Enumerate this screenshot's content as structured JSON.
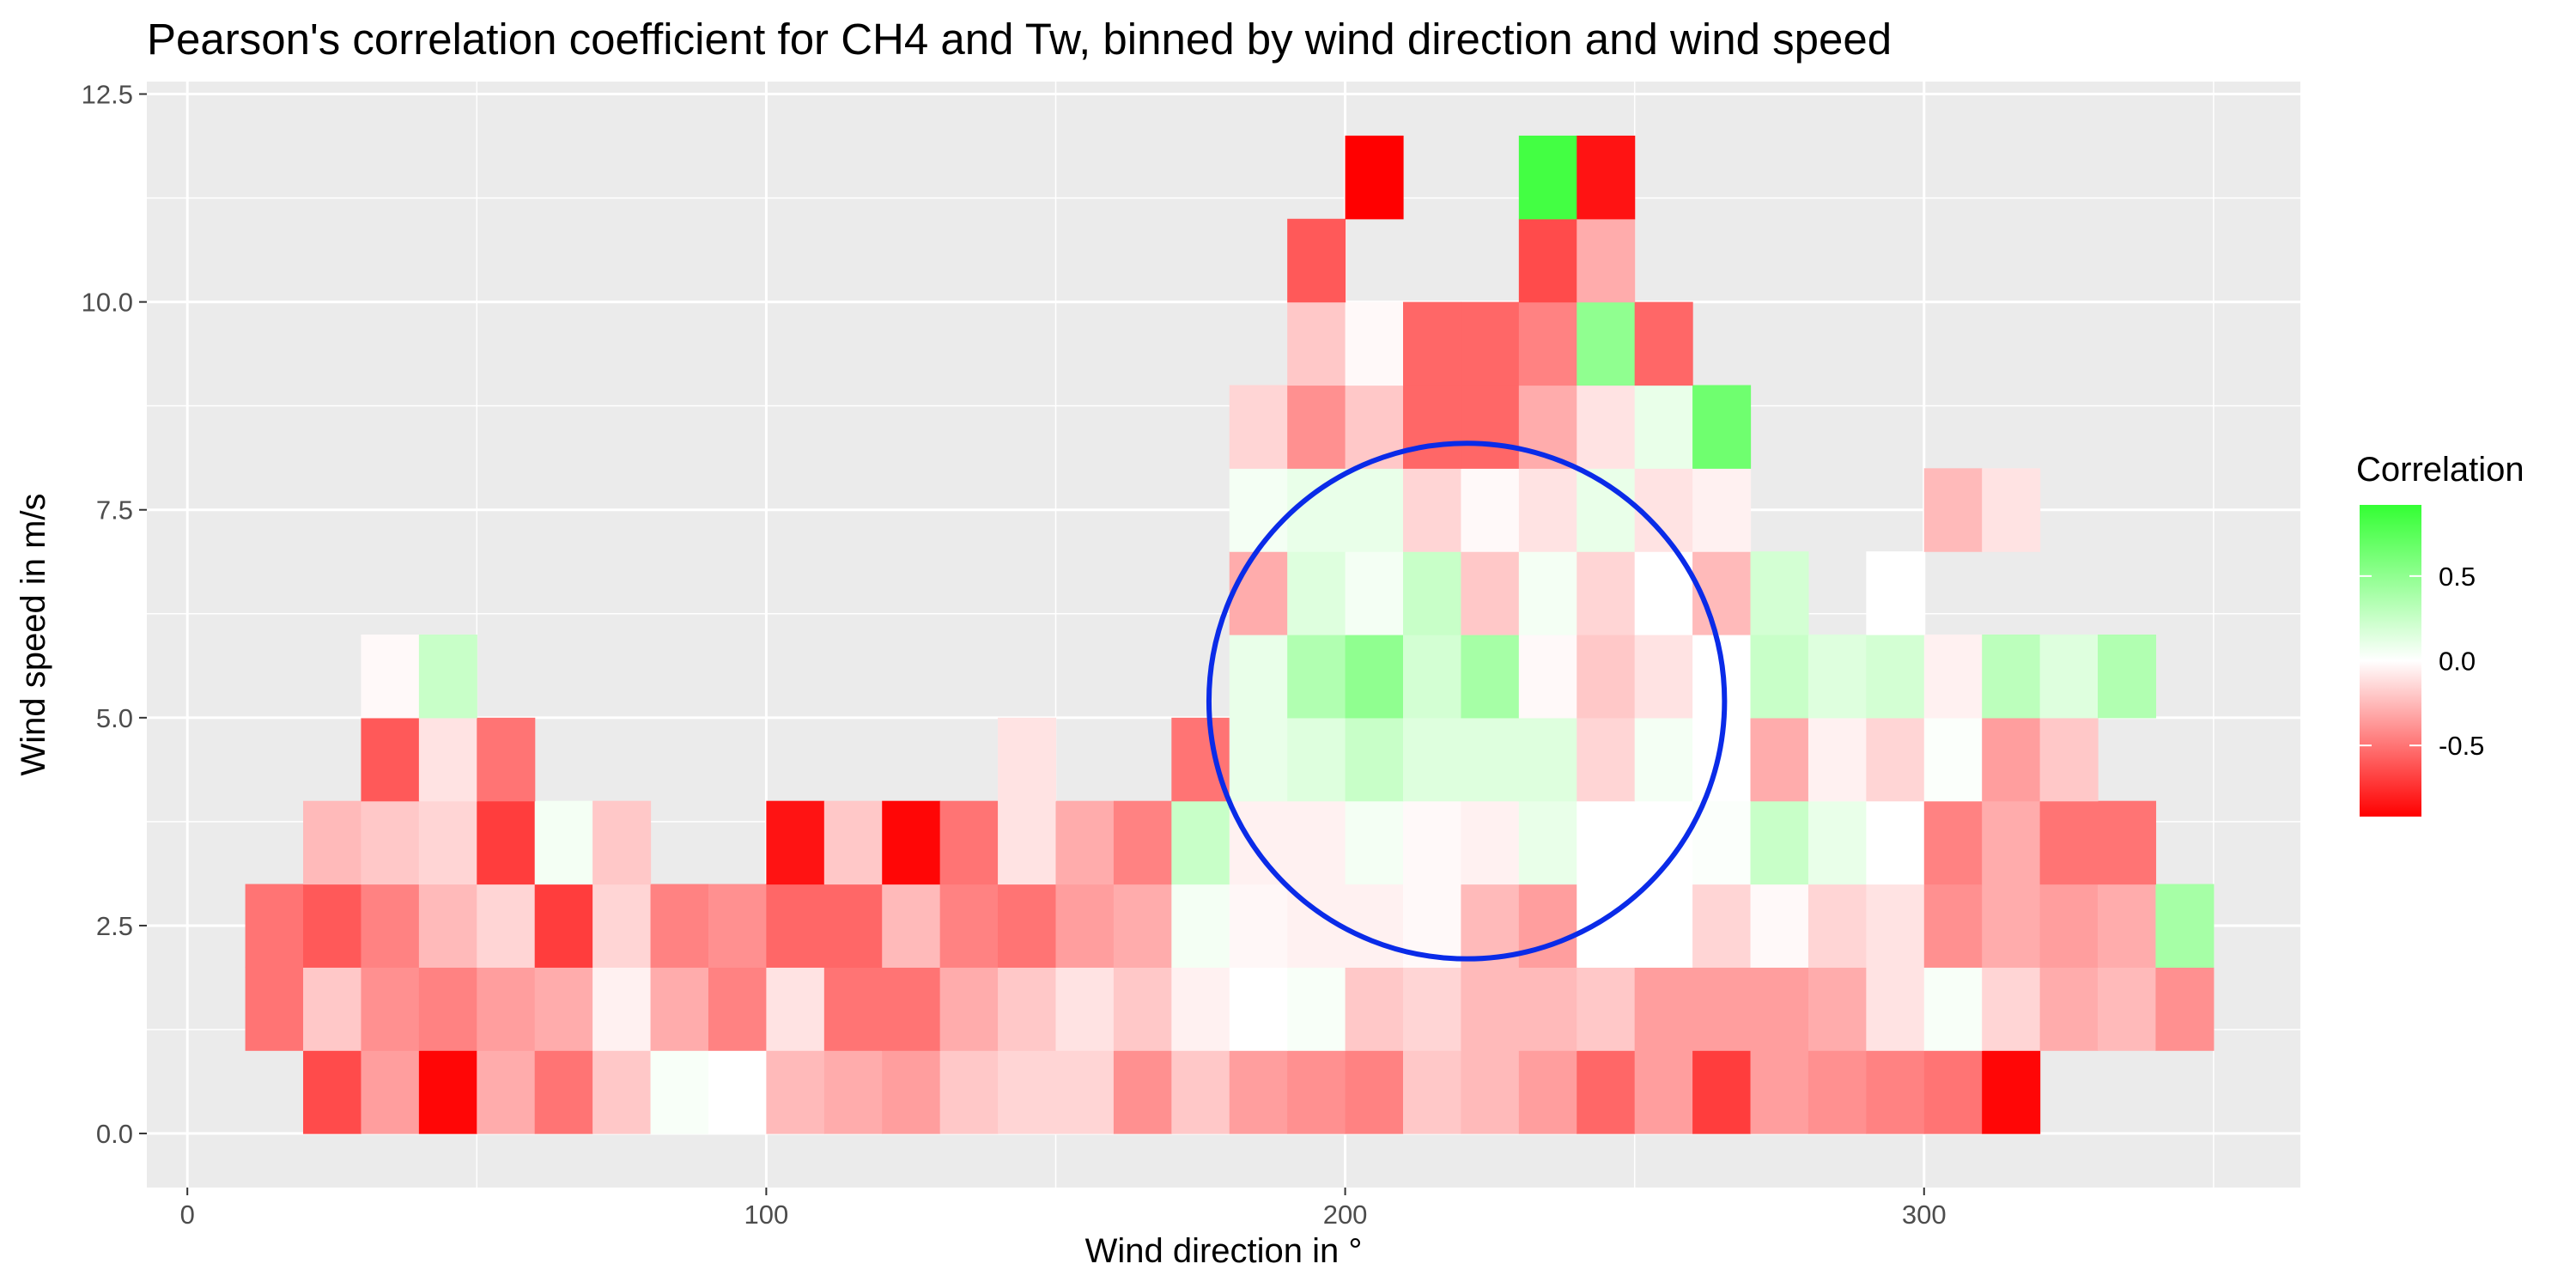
{
  "chart_data": {
    "type": "heatmap",
    "title": "Pearson's correlation coefficient for CH4 and Tw, binned by wind direction and wind speed",
    "xlabel": "Wind direction in °",
    "ylabel": "Wind speed in m/s",
    "xlim": [
      -7,
      365
    ],
    "ylim": [
      -0.65,
      12.65
    ],
    "x_ticks": [
      0,
      100,
      200,
      300
    ],
    "x_tick_labels": [
      "0",
      "100",
      "200",
      "300"
    ],
    "y_ticks": [
      0,
      2.5,
      5,
      7.5,
      10,
      12.5
    ],
    "y_tick_labels": [
      "0.0",
      "2.5",
      "5.0",
      "7.5",
      "10.0",
      "12.5"
    ],
    "grid": true,
    "bin_width_deg": 10,
    "bin_height_ms": 1,
    "rows": [
      {
        "y": 0,
        "x_start": 20,
        "values": [
          -0.65,
          -0.35,
          -0.9,
          -0.3,
          -0.5,
          -0.2,
          0.03,
          0.0,
          -0.25,
          -0.3,
          -0.35,
          -0.2,
          -0.15,
          -0.15,
          -0.4,
          -0.2,
          -0.35,
          -0.4,
          -0.45,
          -0.2,
          -0.25,
          -0.35,
          -0.55,
          -0.35,
          -0.7,
          -0.35,
          -0.4,
          -0.45,
          -0.5,
          -0.9
        ]
      },
      {
        "y": 1,
        "x_start": 10,
        "values": [
          -0.5,
          -0.2,
          -0.4,
          -0.45,
          -0.35,
          -0.3,
          -0.05,
          -0.3,
          -0.45,
          -0.1,
          -0.5,
          -0.5,
          -0.3,
          -0.2,
          -0.1,
          -0.2,
          -0.05,
          0.0,
          0.03,
          -0.2,
          -0.15,
          -0.25,
          -0.25,
          -0.2,
          -0.35,
          -0.35,
          -0.35,
          -0.3,
          -0.1,
          0.03,
          -0.15,
          -0.3,
          -0.25,
          -0.4
        ]
      },
      {
        "y": 2,
        "x_start": 10,
        "values": [
          -0.5,
          -0.6,
          -0.45,
          -0.25,
          -0.15,
          -0.7,
          -0.15,
          -0.45,
          -0.4,
          -0.55,
          -0.55,
          -0.25,
          -0.45,
          -0.5,
          -0.35,
          -0.3,
          0.05,
          -0.03,
          -0.05,
          -0.05,
          -0.02,
          -0.25,
          -0.35,
          0.0,
          0.0,
          -0.15,
          -0.02,
          -0.15,
          -0.1,
          -0.4,
          -0.3,
          -0.35,
          -0.3,
          0.4
        ]
      },
      {
        "y": 3,
        "x_start": 20,
        "values": [
          -0.25,
          -0.2,
          -0.15,
          -0.7,
          0.05,
          -0.2,
          null,
          null,
          -0.85,
          -0.2,
          -0.9,
          -0.5,
          -0.1,
          -0.3,
          -0.45,
          0.25,
          -0.05,
          -0.05,
          0.05,
          -0.02,
          -0.05,
          0.1,
          0.0,
          0.0,
          0.02,
          0.25,
          0.1,
          0.0,
          -0.45,
          -0.3,
          -0.5,
          -0.5
        ]
      },
      {
        "y": 4,
        "x_start": 30,
        "values": [
          -0.6,
          -0.1,
          -0.5,
          null,
          null,
          null,
          null,
          null,
          null,
          null,
          null,
          -0.1,
          null,
          null,
          -0.5,
          0.1,
          0.15,
          0.25,
          0.15,
          0.15,
          0.15,
          -0.15,
          0.05,
          0.0,
          -0.3,
          -0.05,
          -0.15,
          0.02,
          -0.35,
          -0.2
        ]
      },
      {
        "y": 5,
        "x_start": 30,
        "values": [
          -0.02,
          0.25,
          null,
          null,
          null,
          null,
          null,
          null,
          null,
          null,
          null,
          null,
          null,
          null,
          null,
          0.1,
          0.35,
          0.5,
          0.2,
          0.4,
          -0.02,
          -0.2,
          -0.1,
          0.0,
          0.25,
          0.15,
          0.2,
          -0.05,
          0.3,
          0.15,
          0.35
        ]
      },
      {
        "y": 6,
        "x_start": 180,
        "values": [
          -0.3,
          0.15,
          0.05,
          0.25,
          -0.2,
          0.05,
          -0.15,
          0.0,
          -0.25,
          0.2,
          null,
          0.0
        ]
      },
      {
        "y": 7,
        "x_start": 180,
        "values": [
          0.05,
          0.1,
          0.1,
          -0.15,
          -0.02,
          -0.1,
          0.1,
          -0.1,
          -0.05,
          null,
          null,
          null,
          -0.25,
          -0.1
        ]
      },
      {
        "y": 8,
        "x_start": 180,
        "values": [
          -0.15,
          -0.4,
          -0.2,
          -0.55,
          -0.55,
          -0.3,
          -0.1,
          0.1,
          0.65
        ]
      },
      {
        "y": 9,
        "x_start": 190,
        "values": [
          -0.2,
          -0.02,
          -0.55,
          -0.55,
          -0.45,
          0.5,
          -0.55
        ]
      },
      {
        "y": 10,
        "x_start": 190,
        "values": [
          -0.6,
          null,
          null,
          null,
          -0.65,
          -0.3
        ]
      },
      {
        "y": 11,
        "x_start": 200,
        "values": [
          -0.95,
          null,
          null,
          0.85,
          -0.85
        ]
      }
    ],
    "legend": {
      "title": "Correlation",
      "position": "right",
      "ticks": [
        0.5,
        0.0,
        -0.5
      ],
      "tick_labels": [
        "0.5",
        "0.0",
        "-0.5"
      ],
      "range": [
        -0.92,
        0.92
      ],
      "colors": {
        "low": "#ff0000",
        "mid": "#ffffff",
        "high": "#33ff33"
      }
    },
    "annotation": {
      "shape": "circle",
      "center_x": 221,
      "center_y": 5.2,
      "radius_y": 3.1,
      "color": "#0a2be8"
    },
    "panel_background": "#ebebeb",
    "grid_color": "#ffffff"
  }
}
